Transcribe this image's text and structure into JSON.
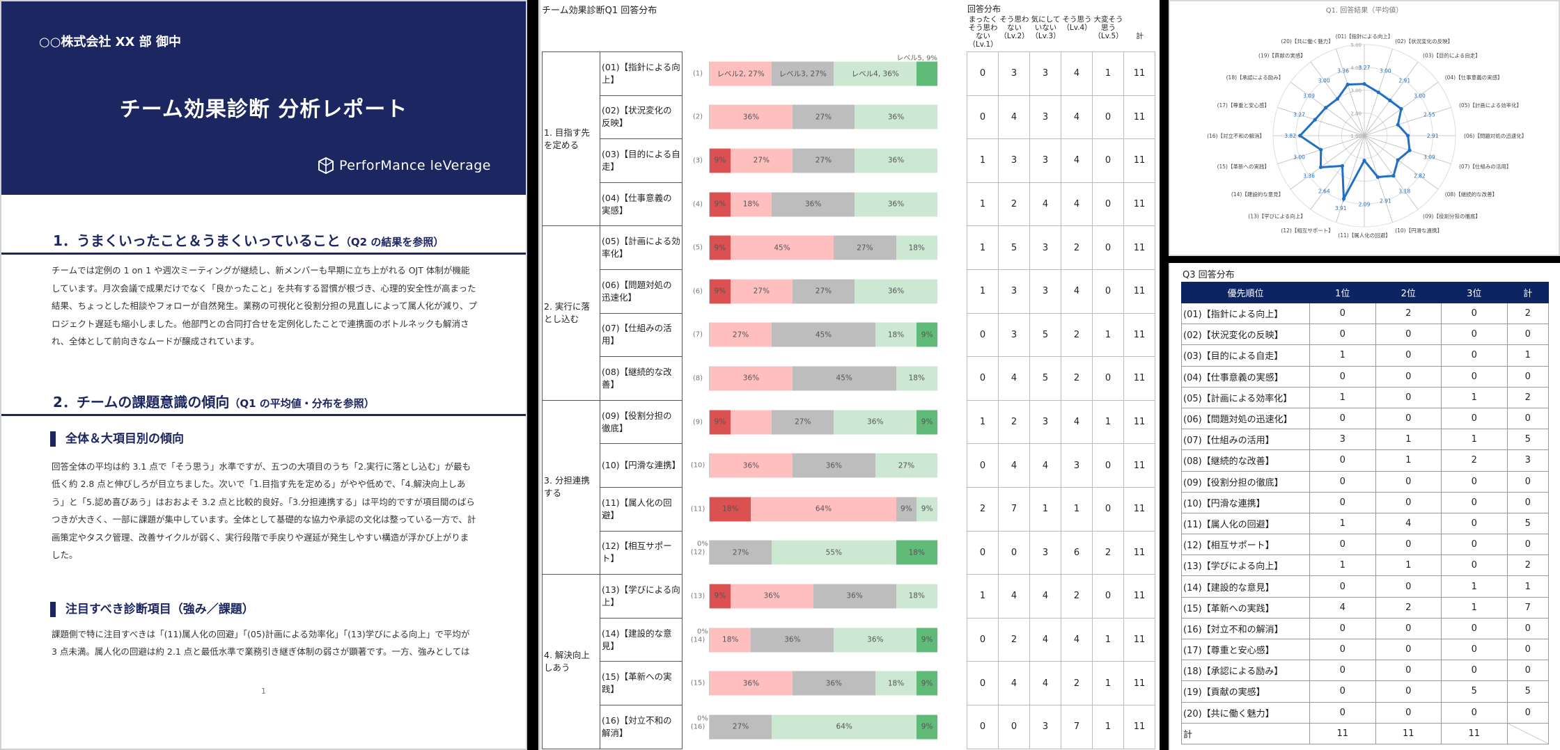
{
  "report": {
    "addressee": "○○株式会社 XX 部 御中",
    "title": "チーム効果診断 分析レポート",
    "brand": "PerforMance leVerage",
    "section1": {
      "heading": "1．うまくいったこと＆うまくいっていること",
      "heading_note": "（Q2 の結果を参照）",
      "body": "チームでは定例の 1 on 1 や週次ミーティングが継続し、新メンバーも早期に立ち上がれる OJT 体制が機能しています。月次会議で成果だけでなく「良かったこと」を共有する習慣が根づき、心理的安全性が高まった結果、ちょっとした相談やフォローが自然発生。業務の可視化と役割分担の見直しによって属人化が減り、プロジェクト遅延も縮小しました。他部門との合同打合せを定例化したことで連携面のボトルネックも解消され、全体として前向きなムードが醸成されています。"
    },
    "section2": {
      "heading": "2．チームの課題意識の傾向",
      "heading_note": "（Q1 の平均値・分布を参照）",
      "sub1_heading": "全体＆大項目別の傾向",
      "sub1_body": "回答全体の平均は約 3.1 点で「そう思う」水準ですが、五つの大項目のうち「2.実行に落とし込む」が最も低く約 2.8 点と伸びしろが目立ちました。次いで「1.目指す先を定める」がやや低めで、「4.解決向上しあう」と「5.認め喜びあう」はおおよそ 3.2 点と比較的良好。「3.分担連携する」は平均的ですが項目間のばらつきが大きく、一部に課題が集中しています。全体として基礎的な協力や承認の文化は整っている一方で、計画策定やタスク管理、改善サイクルが弱く、実行段階で手戻りや遅延が発生しやすい構造が浮かび上がりました。",
      "sub2_heading": "注目すべき診断項目（強み／課題）",
      "sub2_body": "課題側で特に注目すべきは「(11)属人化の回避」「(05)計画による効率化」「(13)学びによる向上」で平均が 3 点未満。属人化の回避は約 2.1 点と最低水準で業務引き継ぎ体制の弱さが顕著です。一方、強みとしては"
    },
    "page_number": "1"
  },
  "q1": {
    "title": "チーム効果診断Q1 回答分布",
    "distribution_title": "回答分布",
    "level_headers": [
      "まったくそう思わない（Lv.1）",
      "そう思わない（Lv.2）",
      "気にしていない（Lv.3）",
      "そう思う（Lv.4）",
      "大変そう思う（Lv.5）",
      "計"
    ],
    "categories": [
      {
        "label": "1. 目指す先を定める"
      },
      {
        "label": "2. 実行に落とし込む"
      },
      {
        "label": "3. 分担連携する"
      },
      {
        "label": "4. 解決向上しあう"
      }
    ],
    "items": [
      {
        "label": "(01)【指針による向上】",
        "idx": "(1)",
        "counts": [
          0,
          3,
          3,
          4,
          1
        ],
        "total": 11,
        "pct": [
          "",
          "レベル2, 27%",
          "レベル3, 27%",
          "レベル4, 36%",
          ""
        ],
        "note": "レベル5, 9%"
      },
      {
        "label": "(02)【状況変化の反映】",
        "idx": "(2)",
        "counts": [
          0,
          4,
          3,
          4,
          0
        ],
        "total": 11,
        "pct": [
          "",
          "36%",
          "27%",
          "36%",
          ""
        ]
      },
      {
        "label": "(03)【目的による自走】",
        "idx": "(3)",
        "counts": [
          1,
          3,
          3,
          4,
          0
        ],
        "total": 11,
        "pct": [
          "9%",
          "27%",
          "27%",
          "36%",
          ""
        ]
      },
      {
        "label": "(04)【仕事意義の実感】",
        "idx": "(4)",
        "counts": [
          1,
          2,
          4,
          4,
          0
        ],
        "total": 11,
        "pct": [
          "9%",
          "18%",
          "36%",
          "36%",
          ""
        ]
      },
      {
        "label": "(05)【計画による効率化】",
        "idx": "(5)",
        "counts": [
          1,
          5,
          3,
          2,
          0
        ],
        "total": 11,
        "pct": [
          "9%",
          "45%",
          "27%",
          "18%",
          ""
        ]
      },
      {
        "label": "(06)【問題対処の迅速化】",
        "idx": "(6)",
        "counts": [
          1,
          3,
          3,
          4,
          0
        ],
        "total": 11,
        "pct": [
          "9%",
          "27%",
          "27%",
          "36%",
          ""
        ]
      },
      {
        "label": "(07)【仕組みの活用】",
        "idx": "(7)",
        "counts": [
          0,
          3,
          5,
          2,
          1
        ],
        "total": 11,
        "pct": [
          "",
          "27%",
          "45%",
          "18%",
          "9%"
        ]
      },
      {
        "label": "(08)【継続的な改善】",
        "idx": "(8)",
        "counts": [
          0,
          4,
          5,
          2,
          0
        ],
        "total": 11,
        "pct": [
          "",
          "36%",
          "45%",
          "18%",
          ""
        ]
      },
      {
        "label": "(09)【役割分担の徹底】",
        "idx": "(9)",
        "counts": [
          1,
          2,
          3,
          4,
          1
        ],
        "total": 11,
        "pct": [
          "9%",
          "",
          "27%",
          "36%",
          "9%"
        ]
      },
      {
        "label": "(10)【円滑な連携】",
        "idx": "(10)",
        "counts": [
          0,
          4,
          4,
          3,
          0
        ],
        "total": 11,
        "pct": [
          "",
          "36%",
          "36%",
          "27%",
          ""
        ]
      },
      {
        "label": "(11)【属人化の回避】",
        "idx": "(11)",
        "counts": [
          2,
          7,
          1,
          1,
          0
        ],
        "total": 11,
        "pct": [
          "18%",
          "64%",
          "9%",
          "9%",
          ""
        ]
      },
      {
        "label": "(12)【相互サポート】",
        "idx": "(12)",
        "counts": [
          0,
          0,
          3,
          6,
          2
        ],
        "total": 11,
        "pct": [
          "",
          "",
          "27%",
          "55%",
          "18%"
        ],
        "zero_note": "0%"
      },
      {
        "label": "(13)【学びによる向上】",
        "idx": "(13)",
        "counts": [
          1,
          4,
          4,
          2,
          0
        ],
        "total": 11,
        "pct": [
          "9%",
          "36%",
          "36%",
          "18%",
          ""
        ]
      },
      {
        "label": "(14)【建設的な意見】",
        "idx": "(14)",
        "counts": [
          0,
          2,
          4,
          4,
          1
        ],
        "total": 11,
        "pct": [
          "",
          "18%",
          "36%",
          "36%",
          "9%"
        ],
        "zero_note": "0%"
      },
      {
        "label": "(15)【革新への実践】",
        "idx": "(15)",
        "counts": [
          0,
          4,
          4,
          2,
          1
        ],
        "total": 11,
        "pct": [
          "",
          "36%",
          "36%",
          "18%",
          "9%"
        ]
      },
      {
        "label": "(16)【対立不和の解消】",
        "idx": "(16)",
        "counts": [
          0,
          0,
          3,
          7,
          1
        ],
        "total": 11,
        "pct": [
          "",
          "",
          "27%",
          "64%",
          "9%"
        ],
        "zero_note": "0%"
      }
    ],
    "colors": {
      "lv1": "#db5050",
      "lv2": "#ffbfbf",
      "lv3": "#bdbdbd",
      "lv4": "#cce8d3",
      "lv5": "#5fbb77"
    }
  },
  "radar": {
    "title": "Q1. 回答結果（平均値）",
    "ticks": [
      "1.00",
      "2.00",
      "3.00",
      "4.00",
      "5.00"
    ],
    "labels": [
      "(01)【指針による向上】",
      "(02)【状況変化の反映】",
      "(03)【目的による自走】",
      "(04)【仕事意義の実感】",
      "(05)【計画による効率化】",
      "(06)【問題対処の迅速化】",
      "(07)【仕組みの活用】",
      "(08)【継続的な改善】",
      "(09)【役割分担の徹底】",
      "(10)【円滑な連携】",
      "(11)【属人化の回避】",
      "(12)【相互サポート】",
      "(13)【学びによる向上】",
      "(14)【建設的な意見】",
      "(15)【革新への実践】",
      "(16)【対立不和の解消】",
      "(17)【尊重と安心感】",
      "(18)【承認による励み】",
      "(19)【貢献の実感】",
      "(20)【共に働く魅力】"
    ],
    "values": [
      3.27,
      3.0,
      2.91,
      3.0,
      2.55,
      2.91,
      3.09,
      2.82,
      3.18,
      2.91,
      2.09,
      3.91,
      2.64,
      3.36,
      3.0,
      3.82,
      3.27,
      3.09,
      3.0,
      3.36
    ],
    "line_color": "#1f6fc4"
  },
  "chart_data": [
    {
      "type": "bar",
      "title": "チーム効果診断Q1 回答分布",
      "stacked": true,
      "categories": [
        "(1)",
        "(2)",
        "(3)",
        "(4)",
        "(5)",
        "(6)",
        "(7)",
        "(8)",
        "(9)",
        "(10)",
        "(11)",
        "(12)",
        "(13)",
        "(14)",
        "(15)",
        "(16)"
      ],
      "series": [
        {
          "name": "レベル1",
          "values": [
            0,
            0,
            9,
            9,
            9,
            9,
            0,
            0,
            9,
            0,
            18,
            0,
            9,
            0,
            0,
            0
          ]
        },
        {
          "name": "レベル2",
          "values": [
            27,
            36,
            27,
            18,
            45,
            27,
            27,
            36,
            18,
            36,
            64,
            0,
            36,
            18,
            36,
            0
          ]
        },
        {
          "name": "レベル3",
          "values": [
            27,
            27,
            27,
            36,
            27,
            27,
            45,
            45,
            27,
            36,
            9,
            27,
            36,
            36,
            36,
            27
          ]
        },
        {
          "name": "レベル4",
          "values": [
            36,
            36,
            36,
            36,
            18,
            36,
            18,
            18,
            36,
            27,
            9,
            55,
            18,
            36,
            18,
            64
          ]
        },
        {
          "name": "レベル5",
          "values": [
            9,
            0,
            0,
            0,
            0,
            0,
            9,
            0,
            9,
            0,
            0,
            18,
            0,
            9,
            9,
            9
          ]
        }
      ],
      "xlabel": "",
      "ylabel": "%",
      "ylim": [
        0,
        100
      ]
    },
    {
      "type": "radar",
      "title": "Q1. 回答結果（平均値）",
      "categories": [
        "(01)【指針による向上】",
        "(02)【状況変化の反映】",
        "(03)【目的による自走】",
        "(04)【仕事意義の実感】",
        "(05)【計画による効率化】",
        "(06)【問題対処の迅速化】",
        "(07)【仕組みの活用】",
        "(08)【継続的な改善】",
        "(09)【役割分担の徹底】",
        "(10)【円滑な連携】",
        "(11)【属人化の回避】",
        "(12)【相互サポート】",
        "(13)【学びによる向上】",
        "(14)【建設的な意見】",
        "(15)【革新への実践】",
        "(16)【対立不和の解消】",
        "(17)【尊重と安心感】",
        "(18)【承認による励み】",
        "(19)【貢献の実感】",
        "(20)【共に働く魅力】"
      ],
      "values": [
        3.27,
        3.0,
        2.91,
        3.0,
        2.55,
        2.91,
        3.09,
        2.82,
        3.18,
        2.91,
        2.09,
        3.91,
        2.64,
        3.36,
        3.0,
        3.82,
        3.27,
        3.09,
        3.0,
        3.36
      ],
      "ylim": [
        1,
        5
      ]
    }
  ],
  "q3": {
    "title": "Q3 回答分布",
    "headers": [
      "優先順位",
      "1位",
      "2位",
      "3位",
      "計"
    ],
    "rows": [
      [
        "(01)【指針による向上】",
        "0",
        "2",
        "0",
        "2"
      ],
      [
        "(02)【状況変化の反映】",
        "0",
        "0",
        "0",
        "0"
      ],
      [
        "(03)【目的による自走】",
        "1",
        "0",
        "0",
        "1"
      ],
      [
        "(04)【仕事意義の実感】",
        "0",
        "0",
        "0",
        "0"
      ],
      [
        "(05)【計画による効率化】",
        "1",
        "0",
        "1",
        "2"
      ],
      [
        "(06)【問題対処の迅速化】",
        "0",
        "0",
        "0",
        "0"
      ],
      [
        "(07)【仕組みの活用】",
        "3",
        "1",
        "1",
        "5"
      ],
      [
        "(08)【継続的な改善】",
        "0",
        "1",
        "2",
        "3"
      ],
      [
        "(09)【役割分担の徹底】",
        "0",
        "0",
        "0",
        "0"
      ],
      [
        "(10)【円滑な連携】",
        "0",
        "0",
        "0",
        "0"
      ],
      [
        "(11)【属人化の回避】",
        "1",
        "4",
        "0",
        "5"
      ],
      [
        "(12)【相互サポート】",
        "0",
        "0",
        "0",
        "0"
      ],
      [
        "(13)【学びによる向上】",
        "1",
        "1",
        "0",
        "2"
      ],
      [
        "(14)【建設的な意見】",
        "0",
        "0",
        "1",
        "1"
      ],
      [
        "(15)【革新への実践】",
        "4",
        "2",
        "1",
        "7"
      ],
      [
        "(16)【対立不和の解消】",
        "0",
        "0",
        "0",
        "0"
      ],
      [
        "(17)【尊重と安心感】",
        "0",
        "0",
        "0",
        "0"
      ],
      [
        "(18)【承認による励み】",
        "0",
        "0",
        "0",
        "0"
      ],
      [
        "(19)【貢献の実感】",
        "0",
        "0",
        "5",
        "5"
      ],
      [
        "(20)【共に働く魅力】",
        "0",
        "0",
        "0",
        "0"
      ]
    ],
    "total_row": [
      "計",
      "11",
      "11",
      "11",
      ""
    ]
  }
}
